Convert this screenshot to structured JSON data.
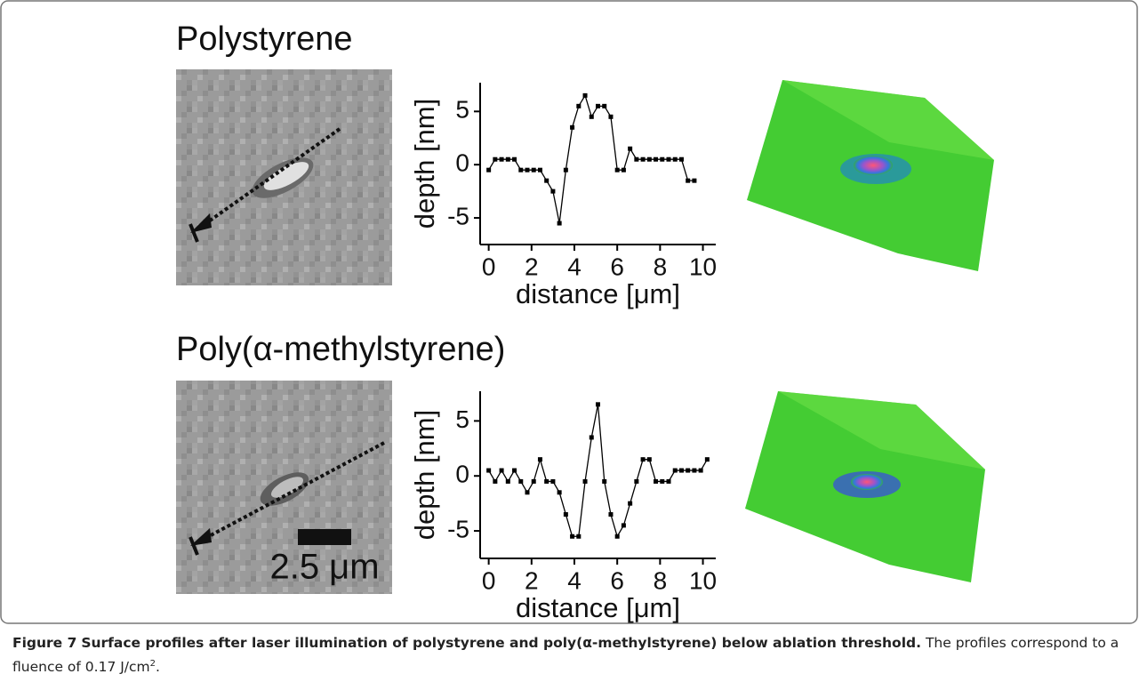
{
  "panels": [
    {
      "title": "Polystyrene"
    },
    {
      "title": "Poly(α-methylstyrene)",
      "scale_bar_label": "2.5 μm"
    }
  ],
  "chart_data": [
    {
      "type": "line",
      "xlabel": "distance [μm]",
      "ylabel": "depth [nm]",
      "color": "#000000",
      "x": [
        0,
        0.3,
        0.6,
        0.9,
        1.2,
        1.5,
        1.8,
        2.1,
        2.4,
        2.7,
        3.0,
        3.3,
        3.6,
        3.9,
        4.2,
        4.5,
        4.8,
        5.1,
        5.4,
        5.7,
        6.0,
        6.3,
        6.6,
        6.9,
        7.2,
        7.5,
        7.8,
        8.1,
        8.4,
        8.7,
        9.0,
        9.3,
        9.6
      ],
      "values": [
        -0.5,
        0.5,
        0.5,
        0.5,
        0.5,
        -0.5,
        -0.5,
        -0.5,
        -0.5,
        -1.5,
        -2.5,
        -5.5,
        -0.5,
        3.5,
        5.5,
        6.5,
        4.5,
        5.5,
        5.5,
        4.5,
        -0.5,
        -0.5,
        1.5,
        0.5,
        0.5,
        0.5,
        0.5,
        0.5,
        0.5,
        0.5,
        0.5,
        -1.5,
        -1.5
      ],
      "xlim": [
        -0.4,
        10.6
      ],
      "ylim": [
        -7.5,
        7.7
      ],
      "xticks": [
        0,
        2,
        4,
        6,
        8,
        10
      ],
      "yticks": [
        -5,
        0,
        5
      ]
    },
    {
      "type": "line",
      "xlabel": "distance [μm]",
      "ylabel": "depth [nm]",
      "color": "#000000",
      "x": [
        0,
        0.3,
        0.6,
        0.9,
        1.2,
        1.5,
        1.8,
        2.1,
        2.4,
        2.7,
        3.0,
        3.3,
        3.6,
        3.9,
        4.2,
        4.5,
        4.8,
        5.1,
        5.4,
        5.7,
        6.0,
        6.3,
        6.6,
        6.9,
        7.2,
        7.5,
        7.8,
        8.1,
        8.4,
        8.7,
        9.0,
        9.3,
        9.6,
        9.9,
        10.2
      ],
      "values": [
        0.5,
        -0.5,
        0.5,
        -0.5,
        0.5,
        -0.5,
        -1.5,
        -0.5,
        1.5,
        -0.5,
        -0.5,
        -1.5,
        -3.5,
        -5.5,
        -5.5,
        -0.5,
        3.5,
        6.5,
        -0.5,
        -3.5,
        -5.5,
        -4.5,
        -2.5,
        -0.5,
        1.5,
        1.5,
        -0.5,
        -0.5,
        -0.5,
        0.5,
        0.5,
        0.5,
        0.5,
        0.5,
        1.5
      ],
      "xlim": [
        -0.4,
        10.6
      ],
      "ylim": [
        -7.5,
        7.7
      ],
      "xticks": [
        0,
        2,
        4,
        6,
        8,
        10
      ],
      "yticks": [
        -5,
        0,
        5
      ]
    }
  ],
  "caption": {
    "label": "Figure 7",
    "title": "Surface profiles after laser illumination of polystyrene and poly(α-methylstyrene) below ablation threshold.",
    "text": "The profiles correspond to a fluence of 0.17 J/cm",
    "superscript": "2",
    "end": "."
  }
}
